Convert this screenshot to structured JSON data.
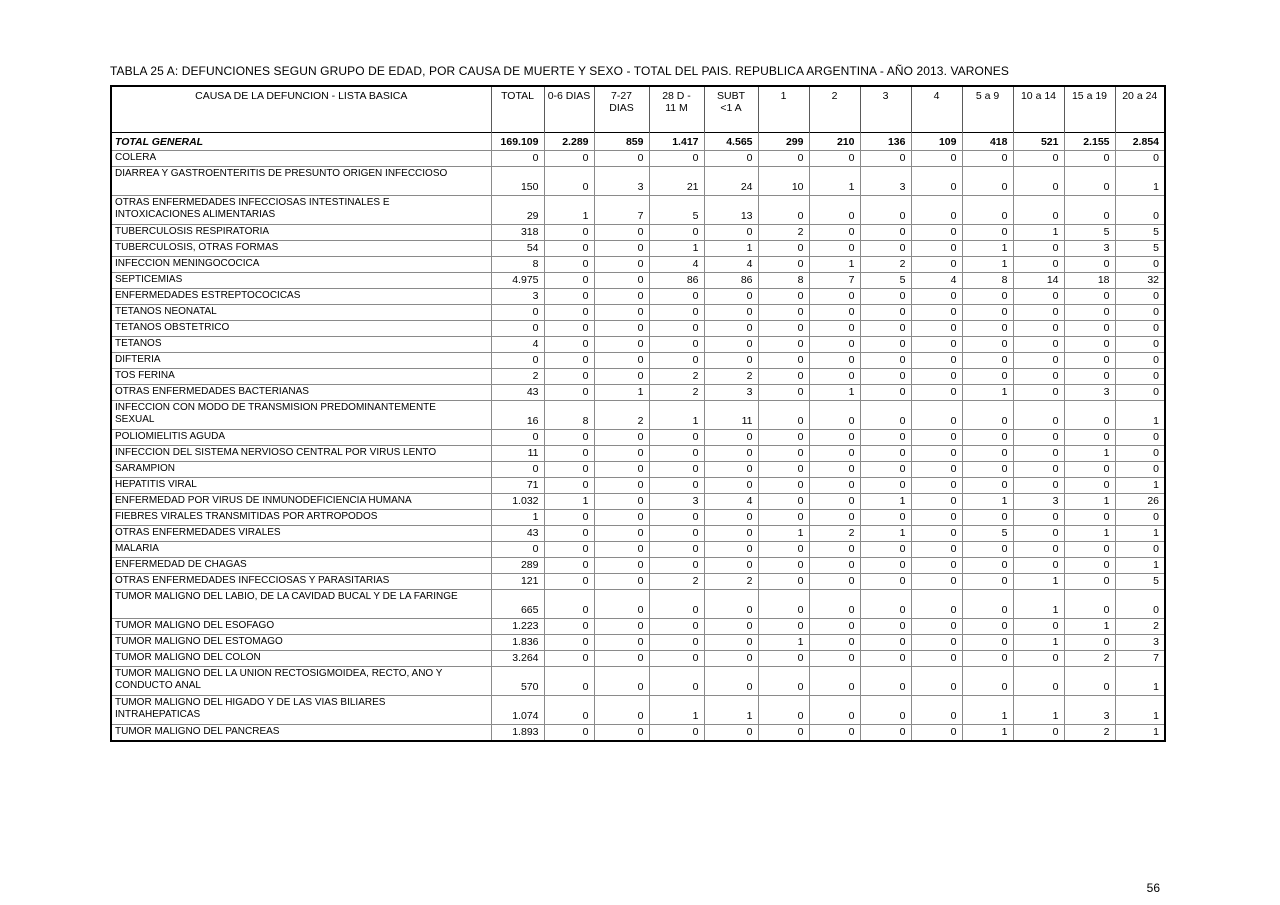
{
  "page": {
    "title": "TABLA 25 A: DEFUNCIONES SEGUN GRUPO DE EDAD, POR CAUSA DE MUERTE Y SEXO - TOTAL DEL PAIS. REPUBLICA ARGENTINA - AÑO 2013. VARONES",
    "page_number": "56"
  },
  "table": {
    "columns": [
      "CAUSA DE LA DEFUNCION - LISTA BASICA",
      "TOTAL",
      "0-6 DIAS",
      "7-27\nDIAS",
      "28 D -\n11 M",
      "SUBT\n<1 A",
      "1",
      "2",
      "3",
      "4",
      "5 a 9",
      "10 a 14",
      "15 a 19",
      "20 a 24"
    ],
    "rows": [
      {
        "cause": "TOTAL GENERAL",
        "bold": true,
        "values": [
          "169.109",
          "2.289",
          "859",
          "1.417",
          "4.565",
          "299",
          "210",
          "136",
          "109",
          "418",
          "521",
          "2.155",
          "2.854"
        ]
      },
      {
        "cause": "COLERA",
        "values": [
          "0",
          "0",
          "0",
          "0",
          "0",
          "0",
          "0",
          "0",
          "0",
          "0",
          "0",
          "0",
          "0"
        ]
      },
      {
        "cause": "DIARREA Y GASTROENTERITIS DE PRESUNTO ORIGEN INFECCIOSO",
        "values": [
          "150",
          "0",
          "3",
          "21",
          "24",
          "10",
          "1",
          "3",
          "0",
          "0",
          "0",
          "0",
          "1"
        ]
      },
      {
        "cause": "OTRAS ENFERMEDADES INFECCIOSAS INTESTINALES E\nINTOXICACIONES ALIMENTARIAS",
        "values": [
          "29",
          "1",
          "7",
          "5",
          "13",
          "0",
          "0",
          "0",
          "0",
          "0",
          "0",
          "0",
          "0"
        ]
      },
      {
        "cause": "TUBERCULOSIS RESPIRATORIA",
        "values": [
          "318",
          "0",
          "0",
          "0",
          "0",
          "2",
          "0",
          "0",
          "0",
          "0",
          "1",
          "5",
          "5"
        ]
      },
      {
        "cause": "TUBERCULOSIS, OTRAS FORMAS",
        "values": [
          "54",
          "0",
          "0",
          "1",
          "1",
          "0",
          "0",
          "0",
          "0",
          "1",
          "0",
          "3",
          "5"
        ]
      },
      {
        "cause": "INFECCION MENINGOCOCICA",
        "values": [
          "8",
          "0",
          "0",
          "4",
          "4",
          "0",
          "1",
          "2",
          "0",
          "1",
          "0",
          "0",
          "0"
        ]
      },
      {
        "cause": "SEPTICEMIAS",
        "values": [
          "4.975",
          "0",
          "0",
          "86",
          "86",
          "8",
          "7",
          "5",
          "4",
          "8",
          "14",
          "18",
          "32"
        ]
      },
      {
        "cause": "ENFERMEDADES ESTREPTOCOCICAS",
        "values": [
          "3",
          "0",
          "0",
          "0",
          "0",
          "0",
          "0",
          "0",
          "0",
          "0",
          "0",
          "0",
          "0"
        ]
      },
      {
        "cause": "TETANOS NEONATAL",
        "values": [
          "0",
          "0",
          "0",
          "0",
          "0",
          "0",
          "0",
          "0",
          "0",
          "0",
          "0",
          "0",
          "0"
        ]
      },
      {
        "cause": "TETANOS OBSTETRICO",
        "values": [
          "0",
          "0",
          "0",
          "0",
          "0",
          "0",
          "0",
          "0",
          "0",
          "0",
          "0",
          "0",
          "0"
        ]
      },
      {
        "cause": "TETANOS",
        "values": [
          "4",
          "0",
          "0",
          "0",
          "0",
          "0",
          "0",
          "0",
          "0",
          "0",
          "0",
          "0",
          "0"
        ]
      },
      {
        "cause": "DIFTERIA",
        "values": [
          "0",
          "0",
          "0",
          "0",
          "0",
          "0",
          "0",
          "0",
          "0",
          "0",
          "0",
          "0",
          "0"
        ]
      },
      {
        "cause": "TOS FERINA",
        "values": [
          "2",
          "0",
          "0",
          "2",
          "2",
          "0",
          "0",
          "0",
          "0",
          "0",
          "0",
          "0",
          "0"
        ]
      },
      {
        "cause": "OTRAS ENFERMEDADES BACTERIANAS",
        "values": [
          "43",
          "0",
          "1",
          "2",
          "3",
          "0",
          "1",
          "0",
          "0",
          "1",
          "0",
          "3",
          "0"
        ]
      },
      {
        "cause": "INFECCION CON MODO DE TRANSMISION PREDOMINANTEMENTE\nSEXUAL",
        "values": [
          "16",
          "8",
          "2",
          "1",
          "11",
          "0",
          "0",
          "0",
          "0",
          "0",
          "0",
          "0",
          "1"
        ]
      },
      {
        "cause": "POLIOMIELITIS AGUDA",
        "values": [
          "0",
          "0",
          "0",
          "0",
          "0",
          "0",
          "0",
          "0",
          "0",
          "0",
          "0",
          "0",
          "0"
        ]
      },
      {
        "cause": "INFECCION DEL SISTEMA NERVIOSO CENTRAL POR VIRUS LENTO",
        "values": [
          "11",
          "0",
          "0",
          "0",
          "0",
          "0",
          "0",
          "0",
          "0",
          "0",
          "0",
          "1",
          "0"
        ]
      },
      {
        "cause": "SARAMPION",
        "values": [
          "0",
          "0",
          "0",
          "0",
          "0",
          "0",
          "0",
          "0",
          "0",
          "0",
          "0",
          "0",
          "0"
        ]
      },
      {
        "cause": "HEPATITIS VIRAL",
        "values": [
          "71",
          "0",
          "0",
          "0",
          "0",
          "0",
          "0",
          "0",
          "0",
          "0",
          "0",
          "0",
          "1"
        ]
      },
      {
        "cause": "ENFERMEDAD POR VIRUS DE INMUNODEFICIENCIA HUMANA",
        "values": [
          "1.032",
          "1",
          "0",
          "3",
          "4",
          "0",
          "0",
          "1",
          "0",
          "1",
          "3",
          "1",
          "26"
        ]
      },
      {
        "cause": "FIEBRES VIRALES TRANSMITIDAS POR ARTROPODOS",
        "values": [
          "1",
          "0",
          "0",
          "0",
          "0",
          "0",
          "0",
          "0",
          "0",
          "0",
          "0",
          "0",
          "0"
        ]
      },
      {
        "cause": "OTRAS ENFERMEDADES VIRALES",
        "values": [
          "43",
          "0",
          "0",
          "0",
          "0",
          "1",
          "2",
          "1",
          "0",
          "5",
          "0",
          "1",
          "1"
        ]
      },
      {
        "cause": "MALARIA",
        "values": [
          "0",
          "0",
          "0",
          "0",
          "0",
          "0",
          "0",
          "0",
          "0",
          "0",
          "0",
          "0",
          "0"
        ]
      },
      {
        "cause": "ENFERMEDAD DE CHAGAS",
        "values": [
          "289",
          "0",
          "0",
          "0",
          "0",
          "0",
          "0",
          "0",
          "0",
          "0",
          "0",
          "0",
          "1"
        ]
      },
      {
        "cause": "OTRAS ENFERMEDADES INFECCIOSAS Y PARASITARIAS",
        "values": [
          "121",
          "0",
          "0",
          "2",
          "2",
          "0",
          "0",
          "0",
          "0",
          "0",
          "1",
          "0",
          "5"
        ]
      },
      {
        "cause": "TUMOR MALIGNO DEL LABIO, DE LA CAVIDAD BUCAL Y DE LA FARINGE",
        "values": [
          "665",
          "0",
          "0",
          "0",
          "0",
          "0",
          "0",
          "0",
          "0",
          "0",
          "1",
          "0",
          "0"
        ]
      },
      {
        "cause": "TUMOR MALIGNO DEL ESOFAGO",
        "values": [
          "1.223",
          "0",
          "0",
          "0",
          "0",
          "0",
          "0",
          "0",
          "0",
          "0",
          "0",
          "1",
          "2"
        ]
      },
      {
        "cause": "TUMOR MALIGNO DEL ESTOMAGO",
        "values": [
          "1.836",
          "0",
          "0",
          "0",
          "0",
          "1",
          "0",
          "0",
          "0",
          "0",
          "1",
          "0",
          "3"
        ]
      },
      {
        "cause": "TUMOR MALIGNO DEL COLON",
        "values": [
          "3.264",
          "0",
          "0",
          "0",
          "0",
          "0",
          "0",
          "0",
          "0",
          "0",
          "0",
          "2",
          "7"
        ]
      },
      {
        "cause": "TUMOR MALIGNO DEL LA UNION RECTOSIGMOIDEA, RECTO, ANO Y\nCONDUCTO ANAL",
        "values": [
          "570",
          "0",
          "0",
          "0",
          "0",
          "0",
          "0",
          "0",
          "0",
          "0",
          "0",
          "0",
          "1"
        ]
      },
      {
        "cause": "TUMOR MALIGNO DEL HIGADO Y DE LAS VIAS BILIARES\nINTRAHEPATICAS",
        "values": [
          "1.074",
          "0",
          "0",
          "1",
          "1",
          "0",
          "0",
          "0",
          "0",
          "1",
          "1",
          "3",
          "1"
        ]
      },
      {
        "cause": "TUMOR MALIGNO DEL PANCREAS",
        "values": [
          "1.893",
          "0",
          "0",
          "0",
          "0",
          "0",
          "0",
          "0",
          "0",
          "1",
          "0",
          "2",
          "1"
        ]
      }
    ]
  }
}
